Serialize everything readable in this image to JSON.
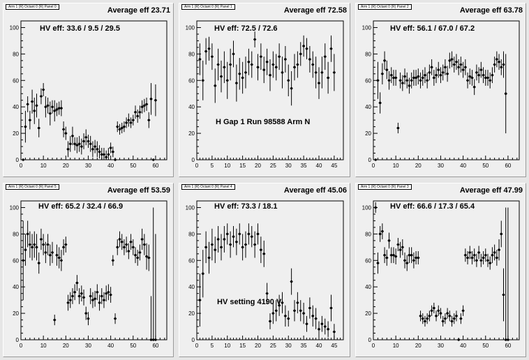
{
  "panels": [
    {
      "title": "Arm 1 (R) Octant 0 (R) Panel 0",
      "average_label": "Average eff 23.71",
      "hv_label": "HV eff:   33.6 / 9.5 / 29.5",
      "note": "",
      "xlim": [
        0,
        65
      ],
      "ylim": [
        0,
        105
      ],
      "xticks": [
        0,
        10,
        20,
        30,
        40,
        50,
        60
      ],
      "yticks": [
        0,
        20,
        40,
        60,
        80,
        100
      ],
      "chart_data": {
        "type": "scatter",
        "x": [
          1,
          2,
          3,
          4,
          5,
          6,
          7,
          8,
          9,
          10,
          11,
          12,
          13,
          14,
          15,
          16,
          17,
          18,
          19,
          20,
          21,
          22,
          23,
          24,
          25,
          26,
          27,
          28,
          29,
          30,
          31,
          32,
          33,
          34,
          35,
          36,
          37,
          38,
          39,
          40,
          41,
          42,
          43,
          44,
          45,
          46,
          47,
          48,
          49,
          50,
          51,
          52,
          53,
          54,
          55,
          56,
          57,
          58,
          59,
          60
        ],
        "y": [
          0,
          25,
          42,
          30,
          44,
          37,
          41,
          24,
          48,
          53,
          40,
          41,
          35,
          40,
          37,
          38,
          39,
          39,
          23,
          20,
          8,
          12,
          18,
          12,
          11,
          12,
          10,
          14,
          17,
          14,
          12,
          8,
          10,
          8,
          6,
          4,
          4,
          2,
          4,
          9,
          6,
          0,
          25,
          23,
          24,
          25,
          28,
          30,
          28,
          30,
          36,
          33,
          36,
          40,
          41,
          42,
          30,
          46,
          0,
          45
        ],
        "err": [
          0,
          12,
          6,
          7,
          9,
          10,
          9,
          7,
          6,
          5,
          8,
          6,
          9,
          5,
          8,
          5,
          5,
          6,
          6,
          5,
          6,
          6,
          7,
          5,
          6,
          6,
          6,
          6,
          6,
          5,
          6,
          6,
          5,
          6,
          5,
          5,
          5,
          5,
          5,
          4,
          4,
          0,
          4,
          4,
          4,
          4,
          4,
          5,
          4,
          4,
          5,
          5,
          5,
          5,
          5,
          5,
          6,
          12,
          0,
          12
        ]
      }
    },
    {
      "title": "Arm 1 (R) Octant 0 (R) Panel 1",
      "average_label": "Average eff 72.58",
      "hv_label": "HV eff:    72.5 / 72.6",
      "note": "H Gap 1 Run 98588 Arm N",
      "xlim": [
        0,
        48
      ],
      "ylim": [
        0,
        105
      ],
      "xticks": [
        0,
        5,
        10,
        15,
        20,
        25,
        30,
        35,
        40,
        45
      ],
      "yticks": [
        0,
        20,
        40,
        60,
        80,
        100
      ],
      "chart_data": {
        "type": "scatter",
        "x": [
          1,
          2,
          3,
          4,
          5,
          6,
          7,
          8,
          9,
          10,
          11,
          12,
          13,
          14,
          15,
          16,
          17,
          18,
          19,
          20,
          21,
          22,
          23,
          24,
          25,
          26,
          27,
          28,
          29,
          30,
          31,
          32,
          33,
          34,
          35,
          36,
          37,
          38,
          39,
          40,
          41,
          42,
          43,
          44,
          45
        ],
        "y": [
          76,
          60,
          82,
          84,
          78,
          56,
          72,
          63,
          70,
          60,
          72,
          80,
          58,
          65,
          62,
          66,
          74,
          72,
          91,
          70,
          78,
          68,
          74,
          64,
          72,
          70,
          78,
          66,
          76,
          60,
          54,
          70,
          72,
          80,
          86,
          84,
          76,
          72,
          66,
          58,
          66,
          78,
          62,
          84,
          66
        ],
        "err": [
          12,
          15,
          10,
          9,
          10,
          13,
          12,
          12,
          12,
          14,
          12,
          10,
          14,
          12,
          12,
          12,
          10,
          10,
          6,
          10,
          10,
          10,
          10,
          12,
          10,
          10,
          10,
          12,
          10,
          12,
          13,
          10,
          10,
          9,
          8,
          8,
          10,
          10,
          12,
          12,
          12,
          10,
          12,
          10,
          14
        ]
      }
    },
    {
      "title": "Arm 1 (R) Octant 0 (R) Panel 2",
      "average_label": "Average eff 63.78",
      "hv_label": "HV eff:    56.1 / 67.0 / 67.2",
      "note": "",
      "xlim": [
        0,
        65
      ],
      "ylim": [
        0,
        105
      ],
      "xticks": [
        0,
        10,
        20,
        30,
        40,
        50,
        60
      ],
      "yticks": [
        0,
        20,
        40,
        60,
        80,
        100
      ],
      "chart_data": {
        "type": "scatter",
        "x": [
          1,
          2,
          3,
          4,
          5,
          6,
          7,
          8,
          9,
          10,
          11,
          12,
          13,
          14,
          15,
          16,
          17,
          18,
          19,
          20,
          21,
          22,
          23,
          24,
          25,
          26,
          27,
          28,
          29,
          30,
          31,
          32,
          33,
          34,
          35,
          36,
          37,
          38,
          39,
          40,
          41,
          42,
          43,
          44,
          45,
          46,
          47,
          48,
          49,
          50,
          51,
          52,
          53,
          54,
          55,
          56,
          57,
          58,
          59
        ],
        "y": [
          0,
          60,
          43,
          65,
          75,
          68,
          60,
          64,
          62,
          62,
          24,
          60,
          58,
          63,
          60,
          56,
          60,
          62,
          62,
          63,
          60,
          62,
          64,
          60,
          66,
          70,
          62,
          64,
          68,
          64,
          66,
          70,
          65,
          75,
          76,
          72,
          74,
          70,
          72,
          68,
          70,
          60,
          63,
          62,
          55,
          66,
          64,
          68,
          64,
          62,
          62,
          60,
          64,
          72,
          76,
          74,
          70,
          72,
          50
        ],
        "err": [
          0,
          14,
          8,
          8,
          7,
          7,
          7,
          6,
          6,
          6,
          4,
          6,
          6,
          6,
          6,
          6,
          6,
          6,
          6,
          6,
          6,
          6,
          6,
          6,
          6,
          6,
          6,
          6,
          6,
          6,
          6,
          6,
          6,
          6,
          6,
          6,
          6,
          6,
          6,
          6,
          6,
          6,
          6,
          6,
          6,
          6,
          6,
          6,
          6,
          6,
          6,
          6,
          6,
          6,
          6,
          6,
          6,
          10,
          30
        ]
      }
    },
    {
      "title": "Arm 1 (R) Octant 0 (R) Panel 5",
      "average_label": "Average eff 53.59",
      "hv_label": "HV eff:    65.2 / 32.4 / 66.9",
      "note": "",
      "xlim": [
        0,
        65
      ],
      "ylim": [
        0,
        105
      ],
      "xticks": [
        0,
        10,
        20,
        30,
        40,
        50,
        60
      ],
      "yticks": [
        0,
        20,
        40,
        60,
        80,
        100
      ],
      "chart_data": {
        "type": "scatter",
        "x": [
          1,
          2,
          3,
          4,
          5,
          6,
          7,
          8,
          9,
          10,
          11,
          12,
          13,
          14,
          15,
          16,
          17,
          18,
          19,
          20,
          21,
          22,
          23,
          24,
          25,
          26,
          27,
          28,
          29,
          30,
          31,
          32,
          33,
          34,
          35,
          36,
          37,
          38,
          39,
          40,
          41,
          42,
          43,
          44,
          45,
          46,
          47,
          48,
          49,
          50,
          51,
          52,
          53,
          54,
          55,
          56,
          57,
          58,
          59,
          60
        ],
        "y": [
          60,
          68,
          80,
          72,
          70,
          72,
          70,
          58,
          76,
          72,
          66,
          72,
          64,
          66,
          15,
          64,
          62,
          60,
          70,
          72,
          28,
          30,
          33,
          36,
          43,
          33,
          35,
          32,
          20,
          16,
          33,
          30,
          31,
          36,
          28,
          33,
          30,
          35,
          36,
          34,
          60,
          16,
          70,
          76,
          74,
          70,
          72,
          67,
          74,
          70,
          64,
          62,
          66,
          76,
          72,
          63,
          62,
          0,
          0,
          0
        ],
        "err": [
          30,
          12,
          10,
          10,
          10,
          10,
          10,
          8,
          8,
          8,
          8,
          8,
          8,
          8,
          4,
          8,
          8,
          8,
          6,
          6,
          6,
          6,
          6,
          6,
          6,
          6,
          6,
          6,
          5,
          5,
          6,
          6,
          6,
          6,
          6,
          6,
          6,
          6,
          6,
          6,
          4,
          4,
          6,
          6,
          6,
          6,
          6,
          6,
          6,
          6,
          6,
          6,
          6,
          8,
          8,
          10,
          10,
          33,
          100,
          80
        ]
      }
    },
    {
      "title": "Arm 1 (R) Octant 0 (R) Panel 4",
      "average_label": "Average eff 45.06",
      "hv_label": "HV eff:    73.3 / 18.1",
      "note": "HV setting 4190 V",
      "xlim": [
        0,
        48
      ],
      "ylim": [
        0,
        105
      ],
      "xticks": [
        0,
        5,
        10,
        15,
        20,
        25,
        30,
        35,
        40,
        45
      ],
      "yticks": [
        0,
        20,
        40,
        60,
        80,
        100
      ],
      "chart_data": {
        "type": "scatter",
        "x": [
          1,
          2,
          3,
          4,
          5,
          6,
          7,
          8,
          9,
          10,
          11,
          12,
          13,
          14,
          15,
          16,
          17,
          18,
          19,
          20,
          21,
          22,
          23,
          24,
          25,
          26,
          27,
          28,
          29,
          30,
          31,
          32,
          33,
          34,
          35,
          36,
          37,
          38,
          39,
          40,
          41,
          42,
          43,
          44,
          45
        ],
        "y": [
          30,
          50,
          70,
          62,
          72,
          68,
          76,
          70,
          76,
          80,
          72,
          78,
          74,
          80,
          70,
          72,
          80,
          78,
          72,
          80,
          68,
          65,
          35,
          14,
          20,
          22,
          26,
          28,
          18,
          16,
          44,
          22,
          28,
          22,
          20,
          12,
          24,
          18,
          16,
          8,
          12,
          10,
          8,
          24,
          6
        ],
        "err": [
          20,
          18,
          12,
          12,
          12,
          10,
          10,
          10,
          10,
          8,
          10,
          8,
          10,
          8,
          10,
          10,
          8,
          8,
          10,
          8,
          10,
          10,
          8,
          6,
          8,
          8,
          8,
          8,
          8,
          6,
          10,
          8,
          8,
          8,
          8,
          6,
          8,
          8,
          8,
          6,
          6,
          6,
          6,
          10,
          6
        ]
      }
    },
    {
      "title": "Arm 1 (R) Octant 0 (R) Panel 3",
      "average_label": "Average eff 47.99",
      "hv_label": "HV eff:    66.6 / 17.3 / 65.4",
      "note": "",
      "xlim": [
        0,
        65
      ],
      "ylim": [
        0,
        105
      ],
      "xticks": [
        0,
        10,
        20,
        30,
        40,
        50,
        60
      ],
      "yticks": [
        0,
        20,
        40,
        60,
        80,
        100
      ],
      "chart_data": {
        "type": "scatter",
        "x": [
          1,
          2,
          3,
          4,
          5,
          6,
          7,
          8,
          9,
          10,
          11,
          12,
          13,
          14,
          15,
          16,
          17,
          18,
          19,
          20,
          21,
          22,
          23,
          24,
          25,
          26,
          27,
          28,
          29,
          30,
          31,
          32,
          33,
          34,
          35,
          36,
          37,
          38,
          39,
          40,
          41,
          42,
          43,
          44,
          45,
          46,
          47,
          48,
          49,
          50,
          51,
          52,
          53,
          54,
          55,
          56,
          57,
          58,
          59,
          60
        ],
        "y": [
          100,
          58,
          80,
          82,
          64,
          62,
          75,
          64,
          64,
          63,
          72,
          68,
          70,
          60,
          58,
          64,
          64,
          60,
          62,
          62,
          18,
          16,
          14,
          16,
          18,
          22,
          24,
          18,
          22,
          20,
          14,
          16,
          20,
          18,
          14,
          16,
          18,
          0,
          16,
          22,
          64,
          62,
          66,
          62,
          64,
          60,
          66,
          60,
          62,
          64,
          60,
          58,
          64,
          66,
          62,
          68,
          80,
          34,
          0,
          0
        ],
        "err": [
          4,
          8,
          6,
          6,
          6,
          6,
          6,
          6,
          6,
          6,
          5,
          6,
          6,
          6,
          6,
          6,
          6,
          6,
          5,
          5,
          4,
          4,
          4,
          4,
          4,
          4,
          4,
          4,
          4,
          4,
          4,
          4,
          4,
          4,
          4,
          4,
          4,
          0,
          4,
          4,
          5,
          5,
          5,
          5,
          5,
          5,
          5,
          5,
          5,
          5,
          5,
          5,
          6,
          6,
          6,
          8,
          10,
          20,
          100,
          100
        ]
      }
    }
  ]
}
